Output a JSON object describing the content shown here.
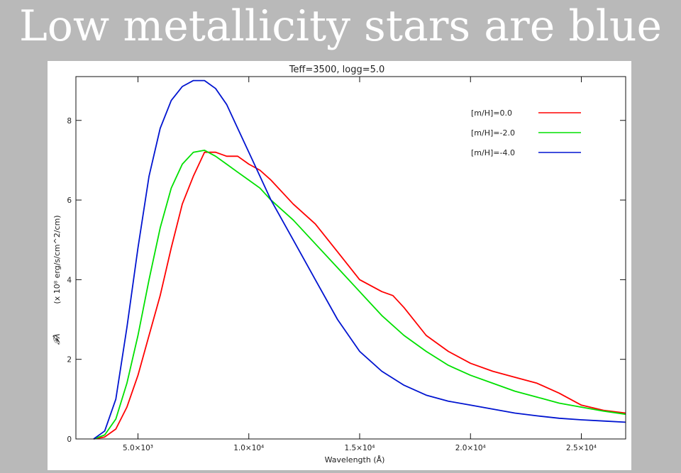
{
  "slide": {
    "title": "Low metallicity stars are blue"
  },
  "colors": {
    "background": "#b9b9b9",
    "panel": "#ffffff",
    "red": "#ff0000",
    "green": "#00e000",
    "blue": "#0014d0"
  },
  "chart_data": {
    "type": "line",
    "title": "Teff=3500, logg=5.0",
    "xlabel": "Wavelength (Å)",
    "ylabel_symbol": "𝓕λ",
    "ylabel": "(x 10⁸ erg/s/cm^2/cm)",
    "xlim": [
      2200,
      27000
    ],
    "ylim": [
      0,
      9.1
    ],
    "xticks": [
      {
        "value": 5000,
        "label": "5.0×10³"
      },
      {
        "value": 10000,
        "label": "1.0×10⁴"
      },
      {
        "value": 15000,
        "label": "1.5×10⁴"
      },
      {
        "value": 20000,
        "label": "2.0×10⁴"
      },
      {
        "value": 25000,
        "label": "2.5×10⁴"
      }
    ],
    "yticks": [
      {
        "value": 0,
        "label": "0"
      },
      {
        "value": 2,
        "label": "2"
      },
      {
        "value": 4,
        "label": "4"
      },
      {
        "value": 6,
        "label": "6"
      },
      {
        "value": 8,
        "label": "8"
      }
    ],
    "legend_position": "top-right",
    "series": [
      {
        "name": "[m/H]=0.0",
        "color": "#ff0000",
        "x": [
          3000,
          3500,
          4000,
          4500,
          5000,
          5500,
          6000,
          6500,
          7000,
          7500,
          8000,
          8500,
          9000,
          9500,
          10000,
          10500,
          11000,
          12000,
          13000,
          14000,
          15000,
          16000,
          16500,
          17000,
          18000,
          19000,
          20000,
          21000,
          22000,
          23000,
          24000,
          25000,
          26000,
          27000
        ],
        "y": [
          0,
          0.05,
          0.25,
          0.8,
          1.6,
          2.6,
          3.6,
          4.8,
          5.9,
          6.6,
          7.2,
          7.2,
          7.1,
          7.1,
          6.9,
          6.75,
          6.5,
          5.9,
          5.4,
          4.7,
          4.0,
          3.7,
          3.6,
          3.3,
          2.6,
          2.2,
          1.9,
          1.7,
          1.55,
          1.4,
          1.15,
          0.85,
          0.72,
          0.65
        ]
      },
      {
        "name": "[m/H]=-2.0",
        "color": "#00e000",
        "x": [
          3000,
          3500,
          4000,
          4500,
          5000,
          5500,
          6000,
          6500,
          7000,
          7500,
          8000,
          8500,
          9000,
          9500,
          10000,
          10500,
          11000,
          12000,
          13000,
          14000,
          15000,
          16000,
          17000,
          18000,
          19000,
          20000,
          21000,
          22000,
          23000,
          24000,
          25000,
          26000,
          27000
        ],
        "y": [
          0,
          0.1,
          0.5,
          1.4,
          2.6,
          4.0,
          5.3,
          6.3,
          6.9,
          7.2,
          7.25,
          7.1,
          6.9,
          6.7,
          6.5,
          6.3,
          6.0,
          5.5,
          4.9,
          4.3,
          3.7,
          3.1,
          2.6,
          2.2,
          1.85,
          1.6,
          1.4,
          1.2,
          1.05,
          0.9,
          0.8,
          0.7,
          0.62
        ]
      },
      {
        "name": "[m/H]=-4.0",
        "color": "#0014d0",
        "x": [
          3000,
          3500,
          4000,
          4500,
          5000,
          5500,
          6000,
          6500,
          7000,
          7500,
          8000,
          8500,
          9000,
          9500,
          10000,
          10500,
          11000,
          12000,
          13000,
          14000,
          15000,
          16000,
          17000,
          18000,
          19000,
          20000,
          21000,
          22000,
          23000,
          24000,
          25000,
          26000,
          27000
        ],
        "y": [
          0,
          0.2,
          1.0,
          2.8,
          4.8,
          6.6,
          7.8,
          8.5,
          8.85,
          9.0,
          9.0,
          8.8,
          8.4,
          7.8,
          7.2,
          6.6,
          6.0,
          5.0,
          4.0,
          3.0,
          2.2,
          1.7,
          1.35,
          1.1,
          0.95,
          0.85,
          0.75,
          0.65,
          0.58,
          0.52,
          0.48,
          0.45,
          0.42
        ]
      }
    ]
  }
}
